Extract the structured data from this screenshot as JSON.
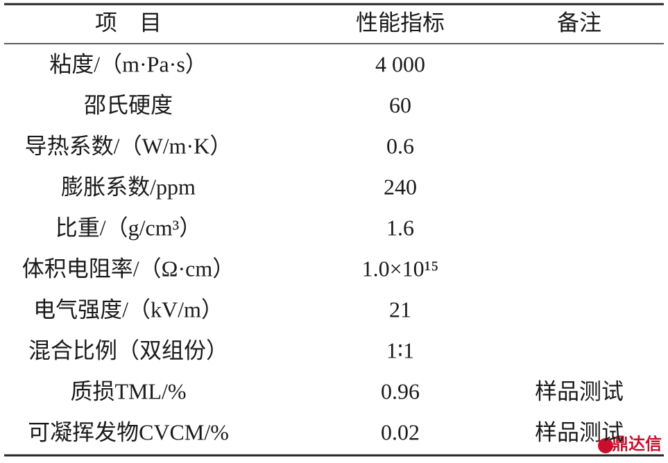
{
  "table": {
    "header": [
      "项　目",
      "性能指标",
      "备注"
    ],
    "rows": [
      [
        "粘度/（m·Pa·s）",
        "4 000"
      ],
      [
        "邵氏硬度",
        "60"
      ],
      [
        "导热系数/（W/m·K）",
        "0.6"
      ],
      [
        "膨胀系数/ppm",
        "240"
      ],
      [
        "比重/（g/cm³）",
        "1.6"
      ],
      [
        "体积电阻率/（Ω·cm）",
        "1.0×10¹⁵"
      ],
      [
        "电气强度/（kV/m）",
        "21"
      ],
      [
        "混合比例（双组份）",
        "1∶1"
      ],
      [
        "质损TML/%",
        "0.96",
        "样品测试"
      ],
      [
        "可凝挥发物CVCM/%",
        "0.02",
        "样品测试"
      ]
    ]
  },
  "watermark": "鼎达信"
}
